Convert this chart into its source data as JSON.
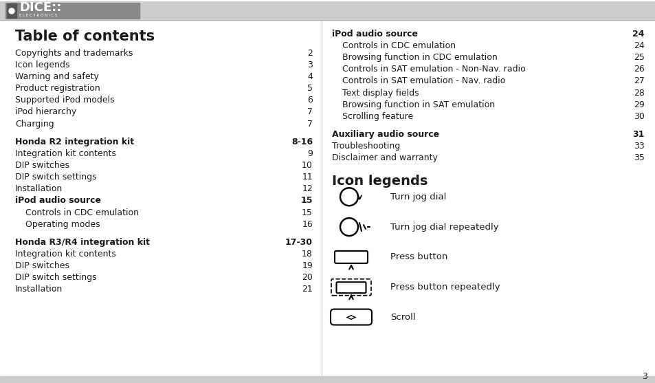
{
  "bg_color": "#ffffff",
  "header_bar_color": "#cccccc",
  "footer_bar_color": "#cccccc",
  "text_color": "#1a1a1a",
  "page_number": "3",
  "title": "Table of contents",
  "left_col_entries": [
    {
      "text": "Copyrights and trademarks",
      "page": "2",
      "bold": false,
      "indent": 0
    },
    {
      "text": "Icon legends",
      "page": "3",
      "bold": false,
      "indent": 0
    },
    {
      "text": "Warning and safety",
      "page": "4",
      "bold": false,
      "indent": 0
    },
    {
      "text": "Product registration",
      "page": "5",
      "bold": false,
      "indent": 0
    },
    {
      "text": "Supported iPod models",
      "page": "6",
      "bold": false,
      "indent": 0
    },
    {
      "text": "iPod hierarchy",
      "page": "7",
      "bold": false,
      "indent": 0
    },
    {
      "text": "Charging",
      "page": "7",
      "bold": false,
      "indent": 0
    },
    {
      "text": "",
      "page": "",
      "bold": false,
      "indent": 0
    },
    {
      "text": "Honda R2 integration kit",
      "page": "8-16",
      "bold": true,
      "indent": 0
    },
    {
      "text": "Integration kit contents",
      "page": "9",
      "bold": false,
      "indent": 0
    },
    {
      "text": "DIP switches",
      "page": "10",
      "bold": false,
      "indent": 0
    },
    {
      "text": "DIP switch settings",
      "page": "11",
      "bold": false,
      "indent": 0
    },
    {
      "text": "Installation",
      "page": "12",
      "bold": false,
      "indent": 0
    },
    {
      "text": "iPod audio source",
      "page": "15",
      "bold": true,
      "indent": 0
    },
    {
      "text": "Controls in CDC emulation",
      "page": "15",
      "bold": false,
      "indent": 1
    },
    {
      "text": "Operating modes",
      "page": "16",
      "bold": false,
      "indent": 1
    },
    {
      "text": "",
      "page": "",
      "bold": false,
      "indent": 0
    },
    {
      "text": "Honda R3/R4 integration kit",
      "page": "17-30",
      "bold": true,
      "indent": 0
    },
    {
      "text": "Integration kit contents",
      "page": "18",
      "bold": false,
      "indent": 0
    },
    {
      "text": "DIP switches",
      "page": "19",
      "bold": false,
      "indent": 0
    },
    {
      "text": "DIP switch settings",
      "page": "20",
      "bold": false,
      "indent": 0
    },
    {
      "text": "Installation",
      "page": "21",
      "bold": false,
      "indent": 0
    }
  ],
  "right_col_entries": [
    {
      "text": "iPod audio source",
      "page": "24",
      "bold": true,
      "indent": 0
    },
    {
      "text": "Controls in CDC emulation",
      "page": "24",
      "bold": false,
      "indent": 1
    },
    {
      "text": "Browsing function in CDC emulation",
      "page": "25",
      "bold": false,
      "indent": 1
    },
    {
      "text": "Controls in SAT emulation - Non-Nav. radio",
      "page": "26",
      "bold": false,
      "indent": 1
    },
    {
      "text": "Controls in SAT emulation - Nav. radio",
      "page": "27",
      "bold": false,
      "indent": 1
    },
    {
      "text": "Text display fields",
      "page": "28",
      "bold": false,
      "indent": 1
    },
    {
      "text": "Browsing function in SAT emulation",
      "page": "29",
      "bold": false,
      "indent": 1
    },
    {
      "text": "Scrolling feature",
      "page": "30",
      "bold": false,
      "indent": 1
    },
    {
      "text": "",
      "page": "",
      "bold": false,
      "indent": 0
    },
    {
      "text": "Auxiliary audio source",
      "page": "31",
      "bold": true,
      "indent": 0
    },
    {
      "text": "Troubleshooting",
      "page": "33",
      "bold": false,
      "indent": 0
    },
    {
      "text": "Disclaimer and warranty",
      "page": "35",
      "bold": false,
      "indent": 0
    }
  ],
  "icon_legends_title": "Icon legends",
  "icon_legends": [
    {
      "label": "Turn jog dial"
    },
    {
      "label": "Turn jog dial repeatedly"
    },
    {
      "label": "Press button"
    },
    {
      "label": "Press button repeatedly"
    },
    {
      "label": "Scroll"
    }
  ]
}
